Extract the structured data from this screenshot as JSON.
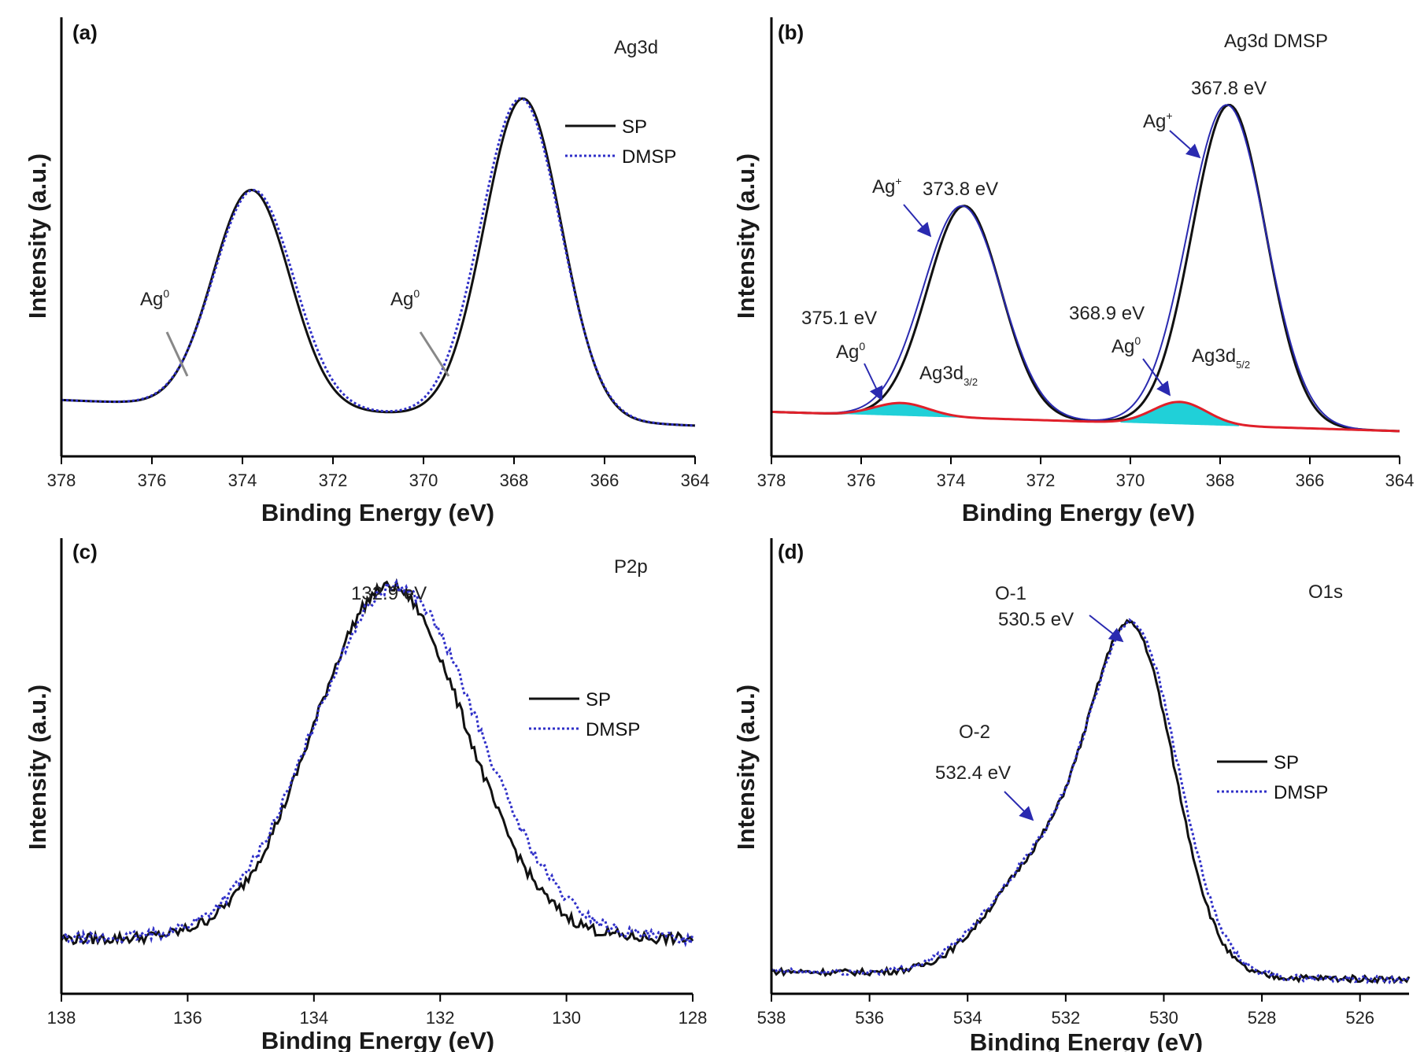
{
  "colors": {
    "sp": "#111111",
    "dmsp": "#3030c8",
    "fit": "#2a2ab0",
    "background": "#e0202a",
    "cyan": "#20d0d8"
  },
  "chart_data": [
    {
      "type": "line",
      "panel": "(a)",
      "title": "Ag3d",
      "xlabel": "Binding Energy (eV)",
      "ylabel": "Intensity (a.u.)",
      "xlim": [
        378,
        364
      ],
      "ylim": [
        0,
        100
      ],
      "xticks": [
        "378",
        "376",
        "374",
        "372",
        "370",
        "368",
        "366",
        "364"
      ],
      "legend_position": "top-right",
      "series": [
        {
          "name": "SP",
          "style": "solid",
          "color": "#111111",
          "peaks": [
            [
              373.8,
              68,
              0.85
            ],
            [
              367.8,
              100,
              0.85
            ]
          ],
          "baseline": [
            9,
            1
          ]
        },
        {
          "name": "DMSP",
          "style": "dotted",
          "color": "#3030c8",
          "peaks": [
            [
              373.75,
              68,
              0.88
            ],
            [
              367.85,
              100,
              0.88
            ]
          ],
          "baseline": [
            9,
            1
          ]
        }
      ],
      "annotations": [
        {
          "text": "Ag",
          "sup": "0",
          "x": 375.3
        },
        {
          "text": "Ag",
          "sup": "0",
          "x": 369.5
        }
      ]
    },
    {
      "type": "line",
      "panel": "(b)",
      "title": "Ag3d DMSP",
      "xlabel": "Binding Energy (eV)",
      "ylabel": "Intensity (a.u.)",
      "xlim": [
        378,
        364
      ],
      "ylim": [
        0,
        100
      ],
      "xticks": [
        "378",
        "376",
        "374",
        "372",
        "370",
        "368",
        "366",
        "364"
      ],
      "series": [
        {
          "name": "",
          "style": "solid",
          "color": "#111111",
          "peaks": [
            [
              373.7,
              66,
              0.82
            ],
            [
              367.8,
              100,
              0.82
            ]
          ],
          "baseline": [
            7,
            1
          ]
        },
        {
          "name": "",
          "style": "fit",
          "color": "#2a2ab0",
          "peaks": [
            [
              373.75,
              66,
              0.87
            ],
            [
              367.85,
              100,
              0.87
            ]
          ],
          "baseline": [
            7,
            1
          ]
        },
        {
          "name": "",
          "style": "component",
          "color": "#e0202a",
          "peaks": [
            [
              375.1,
              4,
              0.6
            ],
            [
              368.9,
              7,
              0.6
            ]
          ],
          "baseline": [
            7,
            1
          ]
        }
      ],
      "annotations": [
        {
          "text": "373.8 eV",
          "x": 373.8
        },
        {
          "text": "367.8 eV",
          "x": 367.8
        },
        {
          "text": "375.1 eV",
          "x": 375.1
        },
        {
          "text": "368.9 eV",
          "x": 368.9
        },
        {
          "text": "Ag",
          "sup": "+",
          "x": 373.8
        },
        {
          "text": "Ag",
          "sup": "+",
          "x": 367.8
        },
        {
          "text": "Ag",
          "sup": "0",
          "x": 375.1
        },
        {
          "text": "Ag",
          "sup": "0",
          "x": 368.9
        },
        {
          "text": "Ag3d",
          "sub": "3/2",
          "x": 374
        },
        {
          "text": "Ag3d",
          "sub": "5/2",
          "x": 367.8
        }
      ]
    },
    {
      "type": "line",
      "panel": "(c)",
      "title": "P2p",
      "xlabel": "Binding Energy (eV)",
      "ylabel": "Intensity (a.u.)",
      "xlim": [
        138,
        128
      ],
      "ylim": [
        0,
        100
      ],
      "xticks": [
        "138",
        "136",
        "134",
        "132",
        "130",
        "128"
      ],
      "legend_position": "right",
      "series": [
        {
          "name": "SP",
          "style": "solid",
          "color": "#111111",
          "peaks": [
            [
              132.8,
              100,
              1.2
            ]
          ],
          "baseline": [
            10,
            10
          ]
        },
        {
          "name": "DMSP",
          "style": "dotted",
          "color": "#3030c8",
          "peaks": [
            [
              132.7,
              100,
              1.3
            ]
          ],
          "baseline": [
            10,
            10
          ]
        }
      ],
      "annotations": [
        {
          "text": "132.9 eV",
          "x": 132.9
        }
      ]
    },
    {
      "type": "line",
      "panel": "(d)",
      "title": "O1s",
      "xlabel": "Binding Energy (eV)",
      "ylabel": "Intensity (a.u.)",
      "xlim": [
        538,
        525
      ],
      "ylim": [
        0,
        100
      ],
      "xticks": [
        "538",
        "536",
        "534",
        "532",
        "530",
        "528",
        "526"
      ],
      "legend_position": "right",
      "series": [
        {
          "name": "SP",
          "style": "solid",
          "color": "#111111",
          "peaks": [
            [
              530.6,
              80,
              0.85
            ],
            [
              532.4,
              28,
              1.1
            ]
          ],
          "baseline": [
            5,
            3
          ]
        },
        {
          "name": "DMSP",
          "style": "dotted",
          "color": "#3030c8",
          "peaks": [
            [
              530.55,
              80,
              0.88
            ],
            [
              532.4,
              28,
              1.15
            ]
          ],
          "baseline": [
            5,
            3
          ]
        }
      ],
      "annotations": [
        {
          "text": "O-1",
          "x": 530.5
        },
        {
          "text": "530.5 eV",
          "x": 530.5
        },
        {
          "text": "O-2",
          "x": 532.4
        },
        {
          "text": "532.4 eV",
          "x": 532.4
        }
      ]
    }
  ]
}
